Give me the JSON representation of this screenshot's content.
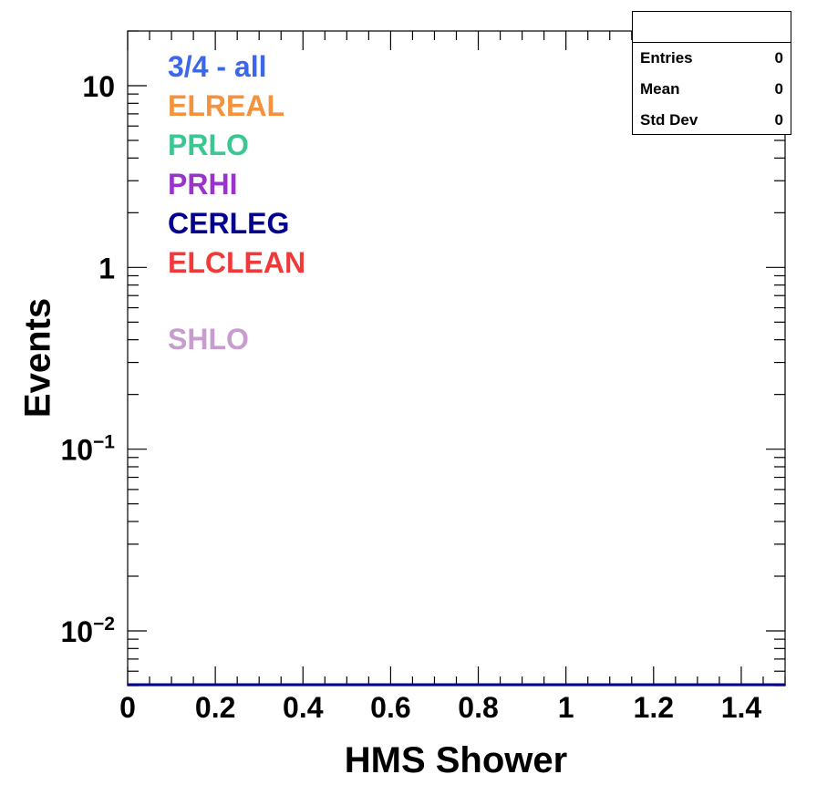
{
  "chart_data": {
    "type": "line",
    "title": "",
    "xlabel": "HMS Shower",
    "ylabel": "Events",
    "xlim": [
      0,
      1.5
    ],
    "ylim": [
      0.005,
      20
    ],
    "yscale": "log",
    "grid": false,
    "x_ticks": [
      "0",
      "0.2",
      "0.4",
      "0.6",
      "0.8",
      "1",
      "1.2",
      "1.4"
    ],
    "x_tick_values": [
      0,
      0.2,
      0.4,
      0.6,
      0.8,
      1,
      1.2,
      1.4
    ],
    "y_ticks": [
      {
        "value": 10,
        "mantissa": "10",
        "exponent": ""
      },
      {
        "value": 1,
        "mantissa": "1",
        "exponent": ""
      },
      {
        "value": 0.1,
        "mantissa": "10",
        "exponent": "−1"
      },
      {
        "value": 0.01,
        "mantissa": "10",
        "exponent": "−2"
      }
    ],
    "series": [
      {
        "name": "3/4 - all",
        "color": "#3b67e8",
        "values": []
      },
      {
        "name": "ELREAL",
        "color": "#f5923e",
        "values": []
      },
      {
        "name": "PRLO",
        "color": "#3cc791",
        "values": []
      },
      {
        "name": "PRHI",
        "color": "#9a33cc",
        "values": []
      },
      {
        "name": "CERLEG",
        "color": "#03008f",
        "values": []
      },
      {
        "name": "ELCLEAN",
        "color": "#f2393a",
        "values": []
      },
      {
        "name": "SHLO",
        "color": "#c89ccf",
        "values": []
      }
    ],
    "legend_position": "top-left",
    "stats": {
      "title": "",
      "rows": [
        {
          "label": "Entries",
          "value": "0"
        },
        {
          "label": "Mean",
          "value": "0"
        },
        {
          "label": "Std Dev",
          "value": "0"
        }
      ]
    }
  }
}
